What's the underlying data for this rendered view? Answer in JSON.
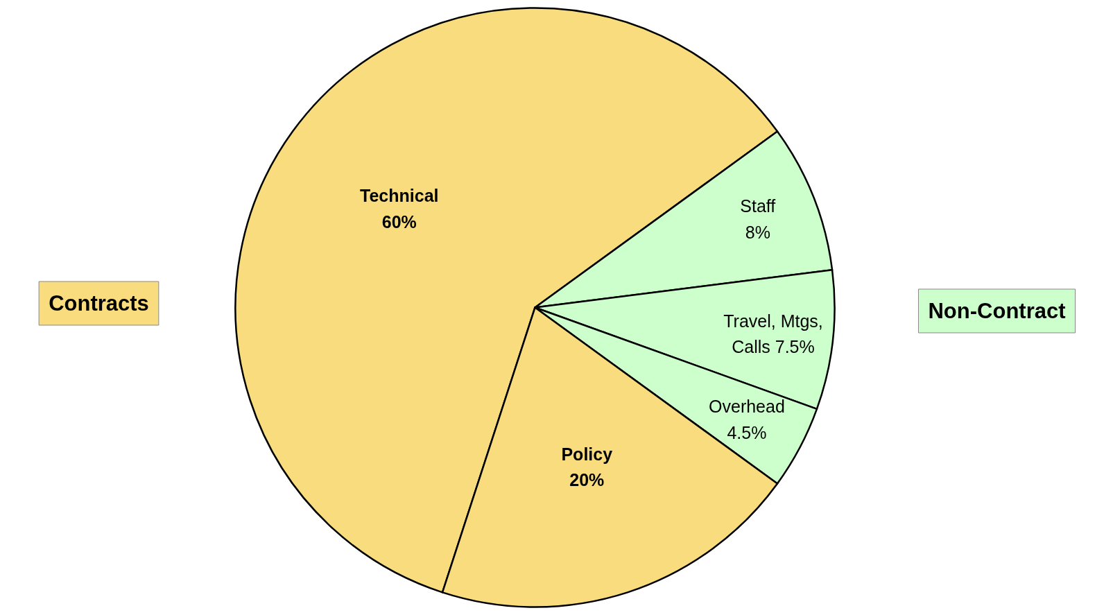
{
  "chart_data": {
    "type": "pie",
    "categories": [
      "Technical",
      "Staff",
      "Travel, Mtgs, Calls",
      "Overhead",
      "Policy"
    ],
    "values": [
      60,
      8,
      7.5,
      4.5,
      20
    ],
    "colors": [
      "#f9dc7d",
      "#ccffcc",
      "#ccffcc",
      "#ccffcc",
      "#f9dc7d"
    ],
    "value_labels": [
      "60%",
      "8%",
      "7.5%",
      "4.5%",
      "20%"
    ],
    "annotations": [
      "Contracts",
      "Non-Contract"
    ]
  }
}
